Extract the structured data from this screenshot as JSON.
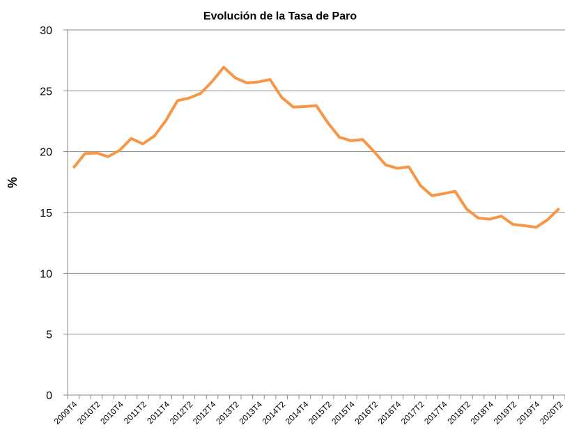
{
  "chart_data": {
    "type": "line",
    "title": "Evolución de la Tasa de Paro",
    "y_label": "%",
    "categories": [
      "2009T4",
      null,
      "2010T2",
      null,
      "2010T4",
      null,
      "2011T2",
      null,
      "2011T4",
      null,
      "2012T2",
      null,
      "2012T4",
      null,
      "2013T2",
      null,
      "2013T4",
      null,
      "2014T2",
      null,
      "2014T4",
      null,
      "2015T2",
      null,
      "2015T4",
      null,
      "2016T2",
      null,
      "2016T4",
      null,
      "2017T2",
      null,
      "2017T4",
      null,
      "2018T2",
      null,
      "2018T4",
      null,
      "2019T2",
      null,
      "2019T4",
      null,
      "2020T2"
    ],
    "values": [
      18.66,
      19.84,
      19.89,
      19.59,
      20.11,
      21.08,
      20.64,
      21.28,
      22.56,
      24.19,
      24.4,
      24.79,
      25.77,
      26.94,
      26.06,
      25.65,
      25.73,
      25.93,
      24.47,
      23.67,
      23.7,
      23.78,
      22.37,
      21.18,
      20.9,
      21.0,
      20.0,
      18.91,
      18.63,
      18.75,
      17.22,
      16.38,
      16.55,
      16.74,
      15.28,
      14.55,
      14.45,
      14.7,
      14.02,
      13.92,
      13.78,
      14.41,
      15.33
    ],
    "color": "#f79646",
    "ylim": [
      0,
      30
    ],
    "yticks": [
      0,
      5,
      10,
      15,
      20,
      25,
      30
    ],
    "grid": true
  }
}
